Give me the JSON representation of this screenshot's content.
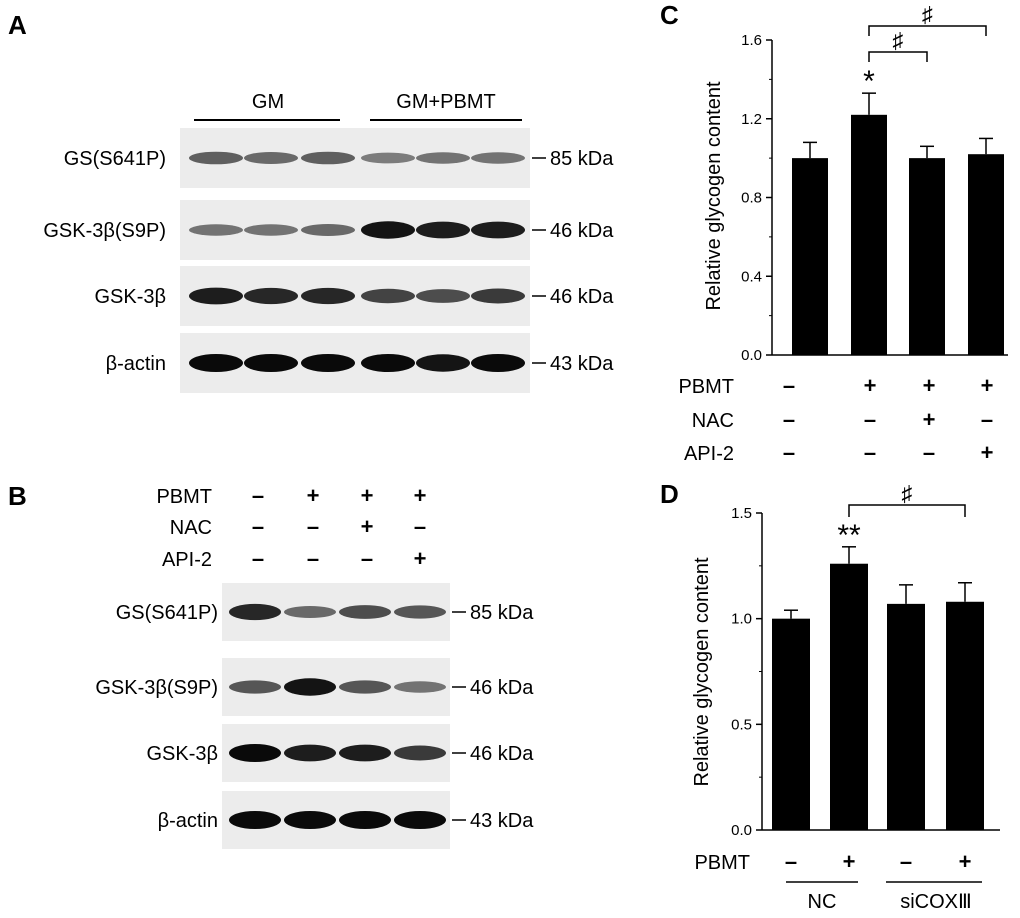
{
  "panels": {
    "A": {
      "letter": "A",
      "groups": [
        "GM",
        "GM+PBMT"
      ],
      "blots": [
        {
          "protein": "GS(S641P)",
          "size": "85 kDa",
          "intensity": [
            0.55,
            0.5,
            0.55,
            0.4,
            0.45,
            0.45
          ]
        },
        {
          "protein": "GSK-3β(S9P)",
          "size": "46 kDa",
          "intensity": [
            0.45,
            0.45,
            0.5,
            0.95,
            0.9,
            0.9
          ]
        },
        {
          "protein": "GSK-3β",
          "size": "46 kDa",
          "intensity": [
            0.9,
            0.85,
            0.85,
            0.7,
            0.65,
            0.75
          ]
        },
        {
          "protein": "β-actin",
          "size": "43 kDa",
          "intensity": [
            1.0,
            1.0,
            1.0,
            1.0,
            0.95,
            1.0
          ]
        }
      ]
    },
    "B": {
      "letter": "B",
      "treatments": [
        {
          "name": "PBMT",
          "signs": [
            "–",
            "+",
            "+",
            "+"
          ]
        },
        {
          "name": "NAC",
          "signs": [
            "–",
            "–",
            "+",
            "–"
          ]
        },
        {
          "name": "API-2",
          "signs": [
            "–",
            "–",
            "–",
            "+"
          ]
        }
      ],
      "blots": [
        {
          "protein": "GS(S641P)",
          "size": "85 kDa",
          "intensity": [
            0.85,
            0.5,
            0.65,
            0.6
          ]
        },
        {
          "protein": "GSK-3β(S9P)",
          "size": "46 kDa",
          "intensity": [
            0.6,
            0.95,
            0.6,
            0.45
          ]
        },
        {
          "protein": "GSK-3β",
          "size": "46 kDa",
          "intensity": [
            1.0,
            0.9,
            0.9,
            0.75
          ]
        },
        {
          "protein": "β-actin",
          "size": "43 kDa",
          "intensity": [
            1.0,
            1.0,
            1.0,
            1.0
          ]
        }
      ]
    },
    "C": {
      "letter": "C",
      "treatments": [
        {
          "name": "PBMT",
          "signs": [
            "–",
            "+",
            "+",
            "+"
          ]
        },
        {
          "name": "NAC",
          "signs": [
            "–",
            "–",
            "+",
            "–"
          ]
        },
        {
          "name": "API-2",
          "signs": [
            "–",
            "–",
            "–",
            "+"
          ]
        }
      ],
      "brackets": [
        {
          "from": 1,
          "to": 2,
          "symbol": "♯"
        },
        {
          "from": 1,
          "to": 3,
          "symbol": "♯"
        }
      ]
    },
    "D": {
      "letter": "D",
      "treatments": [
        {
          "name": "PBMT",
          "signs": [
            "–",
            "+",
            "–",
            "+"
          ]
        }
      ],
      "groups": [
        "NC",
        "siCOXⅢ"
      ],
      "brackets": [
        {
          "from": 1,
          "to": 3,
          "symbol": "♯"
        }
      ]
    }
  },
  "chart_data": [
    {
      "panel": "C",
      "type": "bar",
      "ylabel": "Relative glycogen content",
      "ylim": [
        0,
        1.6
      ],
      "yticks": [
        "0.0",
        "0.4",
        "0.8",
        "1.2",
        "1.6"
      ],
      "values": [
        1.0,
        1.22,
        1.0,
        1.02
      ],
      "errors": [
        0.08,
        0.11,
        0.06,
        0.08
      ],
      "annotations": [
        "",
        "*",
        "",
        ""
      ],
      "color": "#000000"
    },
    {
      "panel": "D",
      "type": "bar",
      "ylabel": "Relative glycogen content",
      "ylim": [
        0,
        1.5
      ],
      "yticks": [
        "0.0",
        "0.5",
        "1.0",
        "1.5"
      ],
      "values": [
        1.0,
        1.26,
        1.07,
        1.08
      ],
      "errors": [
        0.04,
        0.08,
        0.09,
        0.09
      ],
      "annotations": [
        "",
        "**",
        "",
        ""
      ],
      "color": "#000000"
    }
  ]
}
